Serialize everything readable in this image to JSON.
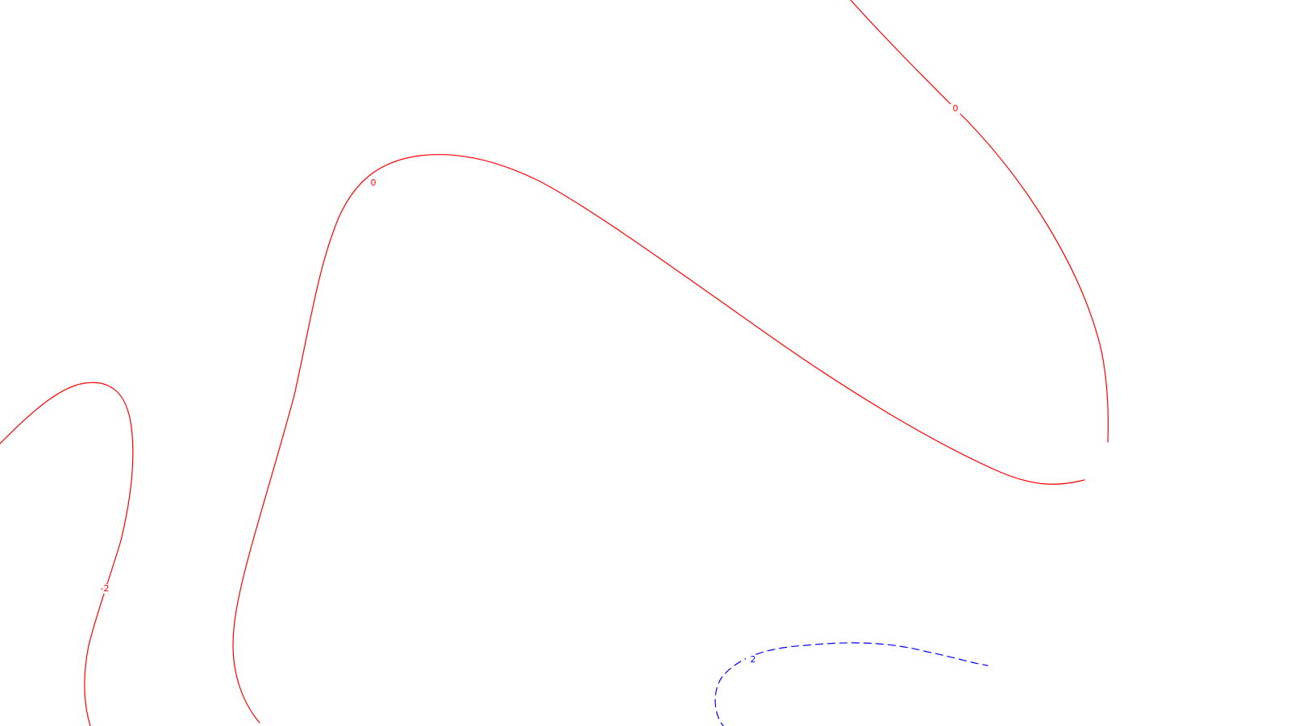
{
  "chart_data": {
    "type": "contour",
    "title": "",
    "xlabel": "",
    "ylabel": "",
    "grid": false,
    "levels": [
      {
        "value": 0,
        "label": "0",
        "color": "#ff0000",
        "style": "solid"
      },
      {
        "value": -2,
        "label": "-2",
        "color": "#ff0000",
        "style": "solid"
      },
      {
        "value": 2,
        "label": "2",
        "color": "#0000ff",
        "style": "dashed"
      }
    ],
    "contours": [
      {
        "id": "contour-zero-main",
        "level_label": "0"
      },
      {
        "id": "contour-zero-upper-right",
        "level_label": "0"
      },
      {
        "id": "contour-minus-two-left",
        "level_label": "-2"
      },
      {
        "id": "contour-two-bottom",
        "level_label": "2"
      }
    ]
  }
}
